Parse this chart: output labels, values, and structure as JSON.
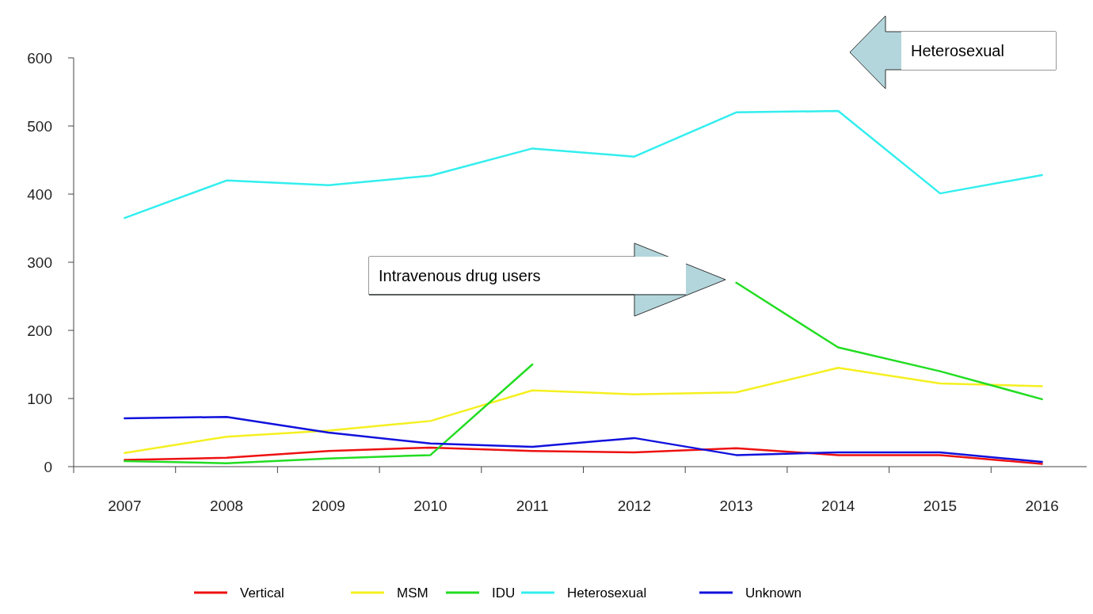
{
  "chart_data": {
    "type": "line",
    "categories": [
      "2007",
      "2008",
      "2009",
      "2010",
      "2011",
      "2012",
      "2013",
      "2014",
      "2015",
      "2016"
    ],
    "ylim": [
      0,
      600
    ],
    "yticks": [
      0,
      100,
      200,
      300,
      400,
      500,
      600
    ],
    "grid": false,
    "legend": "bottom",
    "series": [
      {
        "name": "Vertical",
        "color": "#ee1111",
        "values": [
          10,
          13,
          23,
          28,
          23,
          21,
          27,
          17,
          17,
          4
        ]
      },
      {
        "name": "MSM",
        "color": "#f5f020",
        "values": [
          20,
          44,
          53,
          67,
          112,
          106,
          109,
          145,
          122,
          118
        ]
      },
      {
        "name": "IDU",
        "color": "#22dd22",
        "values": [
          8,
          5,
          12,
          17,
          150,
          null,
          270,
          175,
          140,
          99
        ]
      },
      {
        "name": "Heterosexual",
        "color": "#33eeee",
        "values": [
          365,
          420,
          413,
          427,
          467,
          455,
          520,
          522,
          401,
          428
        ]
      },
      {
        "name": "Unknown",
        "color": "#1111dd",
        "values": [
          71,
          73,
          50,
          34,
          29,
          42,
          17,
          21,
          21,
          7
        ]
      }
    ],
    "annotations": [
      "Heterosexual",
      "Intravenous drug users"
    ]
  }
}
